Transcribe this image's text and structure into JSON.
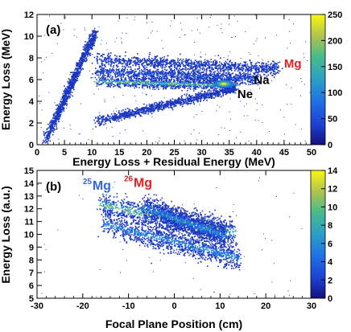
{
  "chart_data": [
    {
      "type": "heatmap",
      "panel_label": "(a)",
      "xlabel": "Energy Loss + Residual Energy (MeV)",
      "ylabel": "Energy Loss (MeV)",
      "xlim": [
        0,
        50
      ],
      "ylim": [
        0,
        12
      ],
      "x_ticks": [
        "0",
        "5",
        "10",
        "15",
        "20",
        "25",
        "30",
        "35",
        "40",
        "45",
        "50"
      ],
      "y_ticks": [
        "0",
        "2",
        "4",
        "6",
        "8",
        "10",
        "12"
      ],
      "colorbar": {
        "min": 0,
        "max": 250,
        "ticks": [
          "0",
          "50",
          "100",
          "150",
          "200",
          "250"
        ]
      },
      "annotations": [
        {
          "text": "Mg",
          "x": 45,
          "y": 7.1,
          "color": "#e02020"
        },
        {
          "text": "Na",
          "x": 39.5,
          "y": 5.6,
          "color": "#000000"
        },
        {
          "text": "Ne",
          "x": 36.5,
          "y": 4.3,
          "color": "#000000"
        }
      ],
      "bands": [
        {
          "name": "Mg",
          "from": [
            10.5,
            7.9
          ],
          "to": [
            44,
            7.0
          ],
          "width_y": 0.55,
          "peak_counts": 60
        },
        {
          "name": "Na",
          "from": [
            10.5,
            6.8
          ],
          "to": [
            40,
            6.1
          ],
          "width_y": 0.5,
          "peak_counts": 80
        },
        {
          "name": "Ne",
          "from": [
            10.5,
            5.9
          ],
          "to": [
            36,
            5.5
          ],
          "width_y": 0.45,
          "peak_counts": 250
        },
        {
          "name": "",
          "from": [
            10.5,
            2.2
          ],
          "to": [
            36,
            5.2
          ],
          "width_y": 0.4,
          "peak_counts": 40
        },
        {
          "name": "",
          "from": [
            1.5,
            0.5
          ],
          "to": [
            10.5,
            10.4
          ],
          "width_y": 0.5,
          "peak_counts": 40
        }
      ],
      "hot_spot": {
        "x": 34,
        "y": 5.6,
        "counts": 250
      }
    },
    {
      "type": "heatmap",
      "panel_label": "(b)",
      "xlabel": "Focal Plane Position (cm)",
      "ylabel": "Energy Loss (a.u.)",
      "xlim": [
        -30,
        30
      ],
      "ylim": [
        5,
        15
      ],
      "x_ticks": [
        "-30",
        "-20",
        "-10",
        "0",
        "10",
        "20",
        "30"
      ],
      "y_ticks": [
        "5",
        "6",
        "7",
        "8",
        "9",
        "10",
        "11",
        "12",
        "13",
        "14",
        "15"
      ],
      "colorbar": {
        "min": 0,
        "max": 14,
        "ticks": [
          "0",
          "2",
          "4",
          "6",
          "8",
          "10",
          "12",
          "14"
        ]
      },
      "annotations": [
        {
          "mass": "25",
          "element": "Mg",
          "x": -20,
          "y": 13.5,
          "color": "#3366e0"
        },
        {
          "mass": "26",
          "element": "Mg",
          "x": -11,
          "y": 13.7,
          "color": "#e02020"
        }
      ],
      "bands": [
        {
          "name": "25Mg",
          "from": [
            -16.5,
            12.4
          ],
          "to": [
            13,
            10.2
          ],
          "width_y": 0.9,
          "peak_counts": 14
        },
        {
          "name": "",
          "from": [
            -16,
            10.9
          ],
          "to": [
            14,
            8.2
          ],
          "width_y": 0.9,
          "peak_counts": 8
        },
        {
          "name": "26Mg",
          "from": [
            -7,
            12.2
          ],
          "to": [
            11,
            9.9
          ],
          "width_y": 0.9,
          "peak_counts": 8
        }
      ]
    }
  ]
}
